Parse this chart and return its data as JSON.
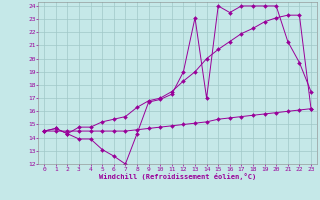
{
  "title": "",
  "xlabel": "Windchill (Refroidissement éolien,°C)",
  "background_color": "#c5e8e8",
  "grid_color": "#a0c8c8",
  "line_color": "#990099",
  "xlim": [
    -0.5,
    23.5
  ],
  "ylim": [
    12,
    24.3
  ],
  "xticks": [
    0,
    1,
    2,
    3,
    4,
    5,
    6,
    7,
    8,
    9,
    10,
    11,
    12,
    13,
    14,
    15,
    16,
    17,
    18,
    19,
    20,
    21,
    22,
    23
  ],
  "yticks": [
    12,
    13,
    14,
    15,
    16,
    17,
    18,
    19,
    20,
    21,
    22,
    23,
    24
  ],
  "line1_x": [
    0,
    1,
    2,
    3,
    4,
    5,
    6,
    7,
    8,
    9,
    10,
    11,
    12,
    13,
    14,
    15,
    16,
    17,
    18,
    19,
    20,
    21,
    22,
    23
  ],
  "line1_y": [
    14.5,
    14.7,
    14.3,
    13.9,
    13.9,
    13.1,
    12.6,
    12.0,
    14.3,
    16.7,
    16.9,
    17.3,
    19.0,
    23.1,
    17.0,
    24.0,
    23.5,
    24.0,
    24.0,
    24.0,
    24.0,
    21.3,
    19.7,
    17.5
  ],
  "line2_x": [
    0,
    1,
    2,
    3,
    4,
    5,
    6,
    7,
    8,
    9,
    10,
    11,
    12,
    13,
    14,
    15,
    16,
    17,
    18,
    19,
    20,
    21,
    22,
    23
  ],
  "line2_y": [
    14.5,
    14.7,
    14.3,
    14.8,
    14.8,
    15.2,
    15.4,
    15.6,
    16.3,
    16.8,
    17.0,
    17.5,
    18.3,
    19.0,
    20.0,
    20.7,
    21.3,
    21.9,
    22.3,
    22.8,
    23.1,
    23.3,
    23.3,
    16.2
  ],
  "line3_x": [
    0,
    1,
    2,
    3,
    4,
    5,
    6,
    7,
    8,
    9,
    10,
    11,
    12,
    13,
    14,
    15,
    16,
    17,
    18,
    19,
    20,
    21,
    22,
    23
  ],
  "line3_y": [
    14.5,
    14.5,
    14.5,
    14.5,
    14.5,
    14.5,
    14.5,
    14.5,
    14.6,
    14.7,
    14.8,
    14.9,
    15.0,
    15.1,
    15.2,
    15.4,
    15.5,
    15.6,
    15.7,
    15.8,
    15.9,
    16.0,
    16.1,
    16.2
  ]
}
